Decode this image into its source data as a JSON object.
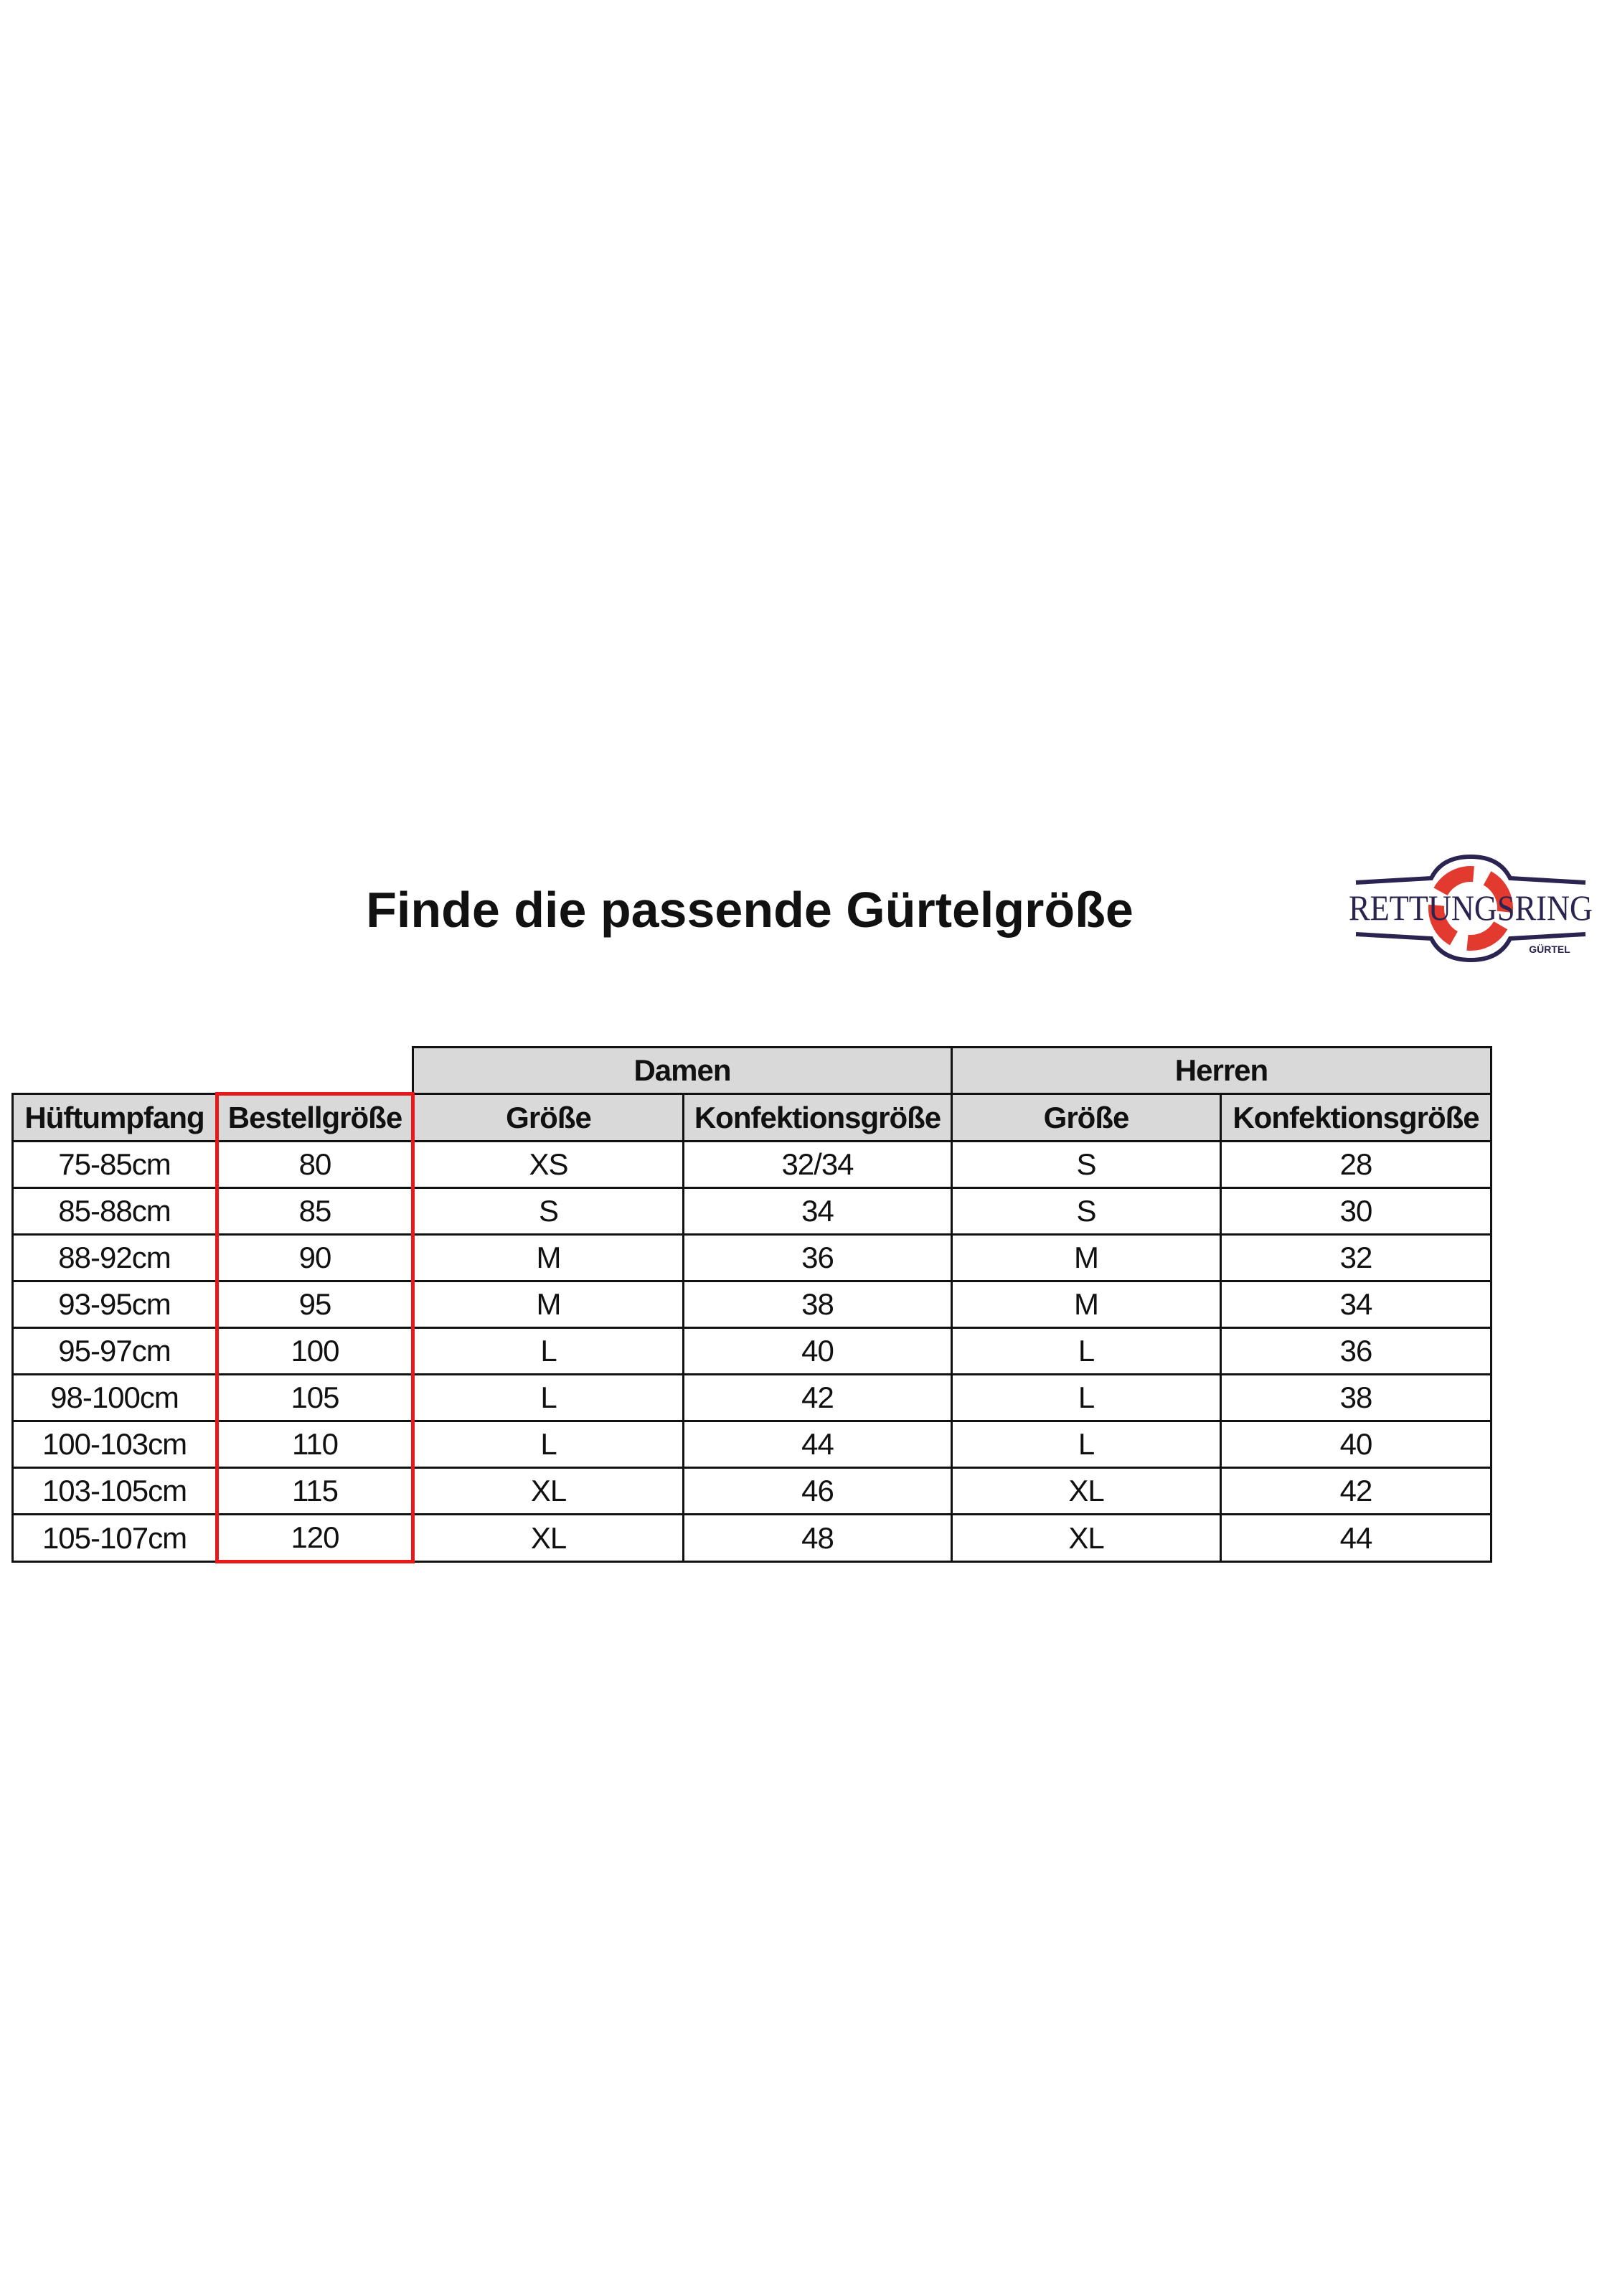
{
  "title": "Finde die passende Gürtelgröße",
  "logo": {
    "text": "RETTUNGSRING",
    "subtext": "GÜRTEL",
    "colors": {
      "navy": "#2b2350",
      "red": "#e23a2e"
    }
  },
  "highlight_color": "#e8191b",
  "table": {
    "groups": [
      "Damen",
      "Herren"
    ],
    "headers": [
      "Hüftumpfang",
      "Bestellgröße",
      "Größe",
      "Konfektionsgröße",
      "Größe",
      "Konfektionsgröße"
    ],
    "rows": [
      [
        "75-85cm",
        "80",
        "XS",
        "32/34",
        "S",
        "28"
      ],
      [
        "85-88cm",
        "85",
        "S",
        "34",
        "S",
        "30"
      ],
      [
        "88-92cm",
        "90",
        "M",
        "36",
        "M",
        "32"
      ],
      [
        "93-95cm",
        "95",
        "M",
        "38",
        "M",
        "34"
      ],
      [
        "95-97cm",
        "100",
        "L",
        "40",
        "L",
        "36"
      ],
      [
        "98-100cm",
        "105",
        "L",
        "42",
        "L",
        "38"
      ],
      [
        "100-103cm",
        "110",
        "L",
        "44",
        "L",
        "40"
      ],
      [
        "103-105cm",
        "115",
        "XL",
        "46",
        "XL",
        "42"
      ],
      [
        "105-107cm",
        "120",
        "XL",
        "48",
        "XL",
        "44"
      ]
    ]
  }
}
